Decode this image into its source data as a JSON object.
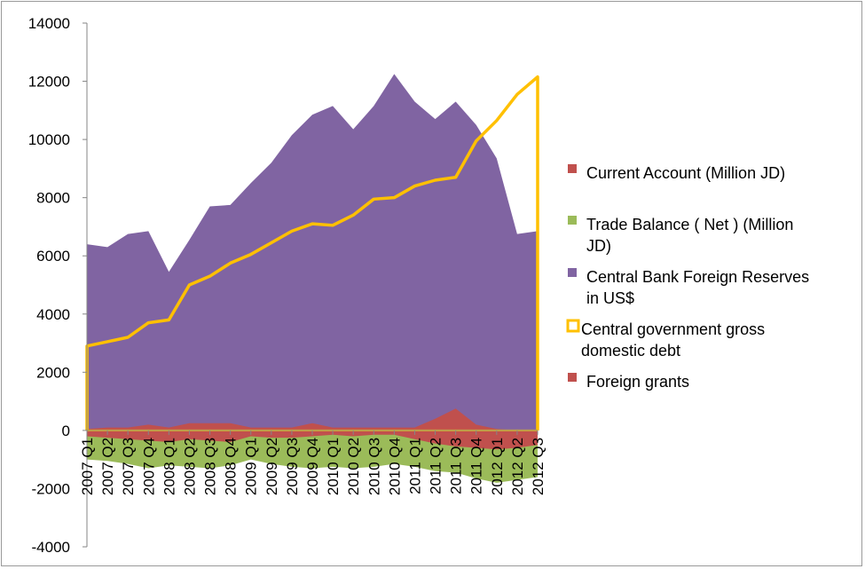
{
  "chart_data": {
    "type": "area",
    "title": "",
    "xlabel": "",
    "ylabel": "",
    "ylim": [
      -4000,
      14000
    ],
    "yticks": [
      -4000,
      -2000,
      0,
      2000,
      4000,
      6000,
      8000,
      10000,
      12000,
      14000
    ],
    "grid": false,
    "legend_position": "right",
    "categories": [
      "2007 Q1",
      "2007 Q2",
      "2007 Q3",
      "2007 Q4",
      "2008 Q1",
      "2008 Q2",
      "2008 Q3",
      "2008 Q4",
      "2009 Q1",
      "2009 Q2",
      "2009 Q3",
      "2009 Q4",
      "2010 Q1",
      "2010 Q2",
      "2010 Q3",
      "2010 Q4",
      "2011 Q1",
      "2011 Q2",
      "2011 Q3",
      "2011 Q4",
      "2012 Q1",
      "2012 Q2",
      "2012 Q3"
    ],
    "series": [
      {
        "name": "Current Account (Million JD)",
        "style": "area",
        "color": "#c0504d",
        "values": [
          -200,
          -250,
          -300,
          -350,
          -400,
          -300,
          -350,
          -400,
          -200,
          -250,
          -250,
          -200,
          -150,
          -200,
          -150,
          -150,
          -300,
          -450,
          -550,
          -600,
          -650,
          -600,
          -500
        ]
      },
      {
        "name": "Trade Balance ( Net ) (Million JD)",
        "style": "area",
        "color": "#9bbb59",
        "values": [
          -1000,
          -1050,
          -1150,
          -1300,
          -1200,
          -1250,
          -1300,
          -1200,
          -1000,
          -1150,
          -1250,
          -1300,
          -1250,
          -1300,
          -1250,
          -1150,
          -1250,
          -1400,
          -1450,
          -1650,
          -1800,
          -1700,
          -1600
        ]
      },
      {
        "name": "Central Bank Foreign Reserves in US$",
        "style": "area",
        "color": "#8064a2",
        "values": [
          6400,
          6300,
          6750,
          6850,
          5450,
          6550,
          7700,
          7750,
          8500,
          9200,
          10150,
          10850,
          11150,
          10350,
          11150,
          12250,
          11300,
          10700,
          11300,
          10500,
          9350,
          6750,
          6850
        ]
      },
      {
        "name": "Central government gross domestic debt",
        "style": "line",
        "color": "#ffc000",
        "values": [
          2900,
          3050,
          3200,
          3700,
          3800,
          5000,
          5300,
          5750,
          6050,
          6450,
          6850,
          7100,
          7050,
          7400,
          7950,
          8000,
          8400,
          8600,
          8700,
          9950,
          10650,
          11550,
          12150
        ]
      },
      {
        "name": "Foreign grants",
        "style": "area",
        "color": "#c0504d",
        "values": [
          50,
          100,
          100,
          200,
          100,
          250,
          250,
          250,
          100,
          100,
          100,
          250,
          100,
          100,
          100,
          100,
          100,
          400,
          750,
          200,
          50,
          0,
          0
        ]
      }
    ]
  }
}
